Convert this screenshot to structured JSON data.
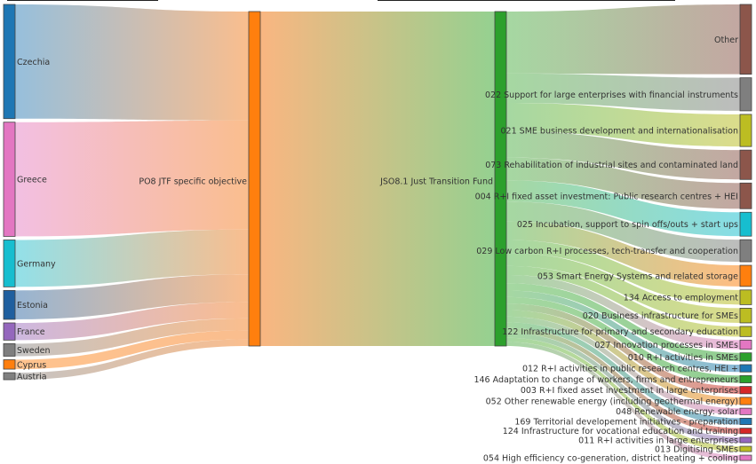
{
  "sankey": {
    "countries": [
      {
        "name": "Czechia",
        "value": 14.6,
        "color": "#1f77b4"
      },
      {
        "name": "Greece",
        "value": 14.6,
        "color": "#e377c2"
      },
      {
        "name": "Germany",
        "value": 6.0,
        "color": "#17becf"
      },
      {
        "name": "Estonia",
        "value": 3.7,
        "color": "#1f5f9f"
      },
      {
        "name": "France",
        "value": 2.2,
        "color": "#9467bd"
      },
      {
        "name": "Sweden",
        "value": 1.6,
        "color": "#7f7f7f"
      },
      {
        "name": "Cyprus",
        "value": 1.2,
        "color": "#ff7f0e"
      },
      {
        "name": "Austria",
        "value": 0.9,
        "color": "#7f7f7f"
      }
    ],
    "objective": {
      "name": "PO8 JTF specific objective",
      "color": "#ff7f0e"
    },
    "fund": {
      "name": "JSO8.1 Just Transition Fund",
      "color": "#2ca02c"
    },
    "categories": [
      {
        "name": "Other",
        "value": 7.6,
        "color": "#8c564b"
      },
      {
        "name": "022 Support for large enterprises with financial instruments",
        "value": 3.6,
        "color": "#7f7f7f"
      },
      {
        "name": "021 SME business development and internationalisation",
        "value": 3.5,
        "color": "#bcbd22"
      },
      {
        "name": "073 Rehabilitation of industrial sites and contaminated land",
        "value": 3.2,
        "color": "#8c564b"
      },
      {
        "name": "004 R+I fixed asset investment: Public research centres + HEI",
        "value": 2.8,
        "color": "#8c564b"
      },
      {
        "name": "025 Incubation, support to spin offs/outs + start ups",
        "value": 2.6,
        "color": "#17becf"
      },
      {
        "name": "029 Low carbon R+I processes, tech-transfer and cooperation",
        "value": 2.4,
        "color": "#7f7f7f"
      },
      {
        "name": "053 Smart Energy Systems and related storage",
        "value": 2.3,
        "color": "#ff7f0e"
      },
      {
        "name": "134 Access to employment",
        "value": 1.6,
        "color": "#bcbd22"
      },
      {
        "name": "020 Business infrastructure for SMEs",
        "value": 1.6,
        "color": "#bcbd22"
      },
      {
        "name": "122 Infrastructure for primary and secondary education",
        "value": 1.1,
        "color": "#bcbd22"
      },
      {
        "name": "027 Innovation processes in SMEs",
        "value": 1.0,
        "color": "#e377c2"
      },
      {
        "name": "010 R+I activities in SMEs",
        "value": 0.9,
        "color": "#2ca02c"
      },
      {
        "name": "012 R+I activities in public research centres, HEI +",
        "value": 0.8,
        "color": "#1f77b4"
      },
      {
        "name": "146 Adaptation to change of workers, firms and entrepreneurs",
        "value": 0.8,
        "color": "#2ca02c"
      },
      {
        "name": "003 R+I fixed asset investment in large enterprises",
        "value": 0.8,
        "color": "#d62728"
      },
      {
        "name": "052 Other renewable energy (including geothermal energy)",
        "value": 0.8,
        "color": "#ff7f0e"
      },
      {
        "name": "048 Renewable energy: solar",
        "value": 0.7,
        "color": "#e377c2"
      },
      {
        "name": "169 Territorial developement initiatives - preparation",
        "value": 0.7,
        "color": "#1f77b4"
      },
      {
        "name": "124 Infrastructure for vocational education and training",
        "value": 0.6,
        "color": "#d62728"
      },
      {
        "name": "011 R+I activities in large enterprises",
        "value": 0.6,
        "color": "#9467bd"
      },
      {
        "name": "013 Digitising SMEs",
        "value": 0.5,
        "color": "#bcbd22"
      },
      {
        "name": "054 High efficiency co-generation, district heating + cooling",
        "value": 0.5,
        "color": "#e377c2"
      }
    ]
  }
}
